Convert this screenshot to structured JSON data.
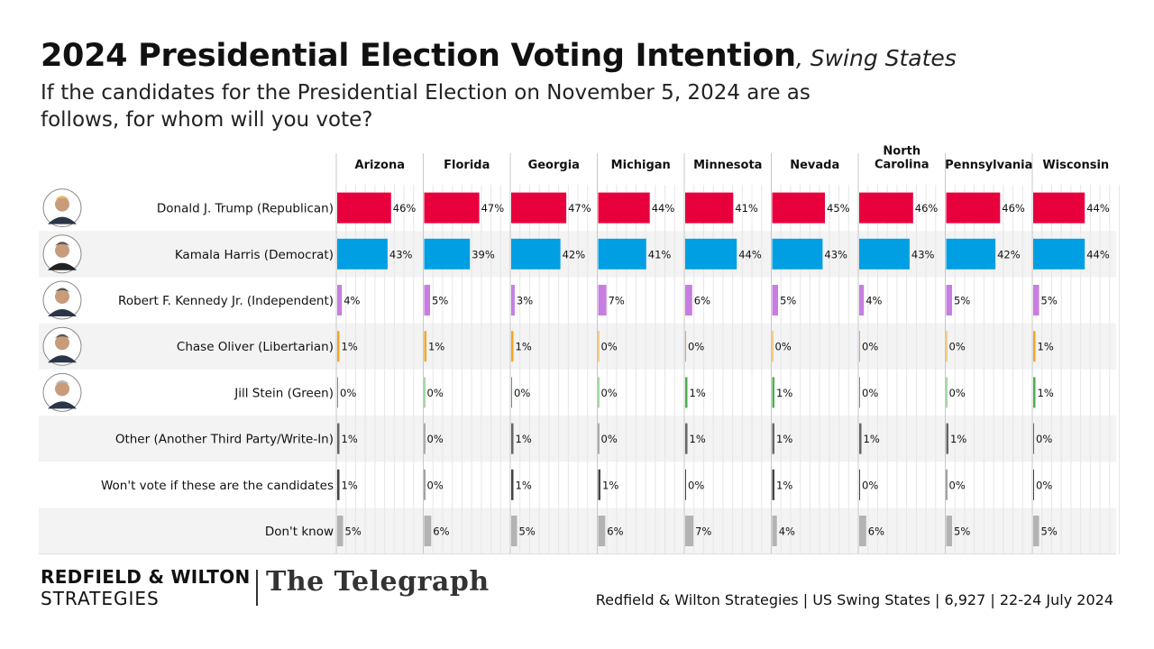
{
  "header": {
    "title": "2024 Presidential Election Voting Intention",
    "title_suffix": ", Swing States",
    "subtitle": "If the candidates for the Presidential Election on November 5, 2024 are as follows, for whom will you vote?"
  },
  "footer": {
    "logo_line1": "REDFIELD & WILTON",
    "logo_line2": "STRATEGIES",
    "paper_name": "The Telegraph",
    "source": "Redfield & Wilton Strategies | US Swing States | 6,927 | 22-24 July 2024"
  },
  "chart_data": {
    "type": "bar",
    "orientation": "horizontal",
    "value_suffix": "%",
    "max_value": 50,
    "categories": [
      "Donald J. Trump (Republican)",
      "Kamala Harris (Democrat)",
      "Robert F. Kennedy Jr. (Independent)",
      "Chase Oliver (Libertarian)",
      "Jill Stein (Green)",
      "Other (Another Third Party/Write-In)",
      "Won't vote if these are the candidates",
      "Don't know"
    ],
    "category_colors": [
      "#e8003d",
      "#009fe3",
      "#c77ee0",
      "#f5a623",
      "#4caf50",
      "#666666",
      "#444444",
      "#b3b3b3"
    ],
    "candidate_photos": [
      "trump-photo",
      "harris-photo",
      "kennedy-photo",
      "oliver-photo",
      "stein-photo"
    ],
    "series": [
      {
        "name": "Arizona",
        "values": [
          46,
          43,
          4,
          1,
          0,
          1,
          1,
          5
        ]
      },
      {
        "name": "Florida",
        "values": [
          47,
          39,
          5,
          1,
          0,
          0,
          0,
          6
        ]
      },
      {
        "name": "Georgia",
        "values": [
          47,
          42,
          3,
          1,
          0,
          1,
          1,
          5
        ]
      },
      {
        "name": "Michigan",
        "values": [
          44,
          41,
          7,
          0,
          0,
          0,
          1,
          6
        ]
      },
      {
        "name": "Minnesota",
        "values": [
          41,
          44,
          6,
          0,
          1,
          1,
          0,
          7
        ]
      },
      {
        "name": "Nevada",
        "values": [
          45,
          43,
          5,
          0,
          1,
          1,
          1,
          4
        ]
      },
      {
        "name": "North Carolina",
        "values": [
          46,
          43,
          4,
          0,
          0,
          1,
          0,
          6
        ]
      },
      {
        "name": "Pennsylvania",
        "values": [
          46,
          42,
          5,
          0,
          0,
          1,
          0,
          5
        ]
      },
      {
        "name": "Wisconsin",
        "values": [
          44,
          44,
          5,
          1,
          1,
          0,
          0,
          5
        ]
      }
    ]
  }
}
